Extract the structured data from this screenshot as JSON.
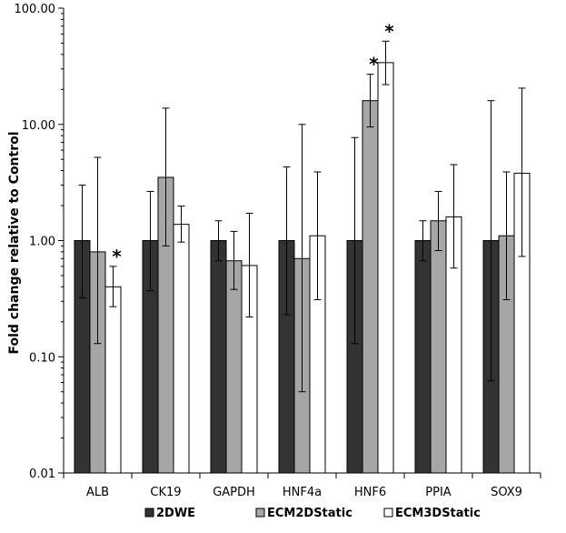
{
  "chart_data": {
    "type": "bar",
    "ylabel": "Fold change relative to Control",
    "xlabel": "",
    "yscale": "log",
    "ylim": [
      0.01,
      100
    ],
    "y_ticks": [
      "0.01",
      "0.10",
      "1.00",
      "10.00",
      "100.00"
    ],
    "grid": false,
    "legend_position": "bottom",
    "categories": [
      "ALB",
      "CK19",
      "GAPDH",
      "HNF4a",
      "HNF6",
      "PPIA",
      "SOX9"
    ],
    "series": [
      {
        "name": "2DWE",
        "color": "#333333",
        "values": [
          1.0,
          1.0,
          1.0,
          1.0,
          1.0,
          1.0,
          1.0
        ],
        "err_low": [
          0.32,
          0.37,
          0.67,
          0.23,
          0.13,
          0.67,
          0.062
        ],
        "err_high": [
          3.0,
          2.65,
          1.48,
          4.3,
          7.7,
          1.48,
          16.0
        ]
      },
      {
        "name": "ECM2DStatic",
        "color": "#a6a6a6",
        "values": [
          0.8,
          3.5,
          0.67,
          0.7,
          16.0,
          1.48,
          1.1
        ],
        "err_low": [
          0.13,
          0.9,
          0.38,
          0.05,
          9.5,
          0.82,
          0.31
        ],
        "err_high": [
          5.2,
          13.8,
          1.2,
          10.0,
          27.0,
          2.65,
          3.9
        ]
      },
      {
        "name": "ECM3DStatic",
        "color": "#ffffff",
        "values": [
          0.4,
          1.38,
          0.61,
          1.1,
          34.0,
          1.6,
          3.8
        ],
        "err_low": [
          0.27,
          0.97,
          0.22,
          0.31,
          22.0,
          0.58,
          0.73
        ],
        "err_high": [
          0.6,
          1.98,
          1.72,
          3.9,
          52.0,
          4.5,
          20.5
        ]
      }
    ],
    "annotations": [
      {
        "text": "*",
        "category": "ALB",
        "series": "ECM3DStatic"
      },
      {
        "text": "*",
        "category": "HNF6",
        "series": "ECM2DStatic"
      },
      {
        "text": "*",
        "category": "HNF6",
        "series": "ECM3DStatic"
      }
    ]
  }
}
